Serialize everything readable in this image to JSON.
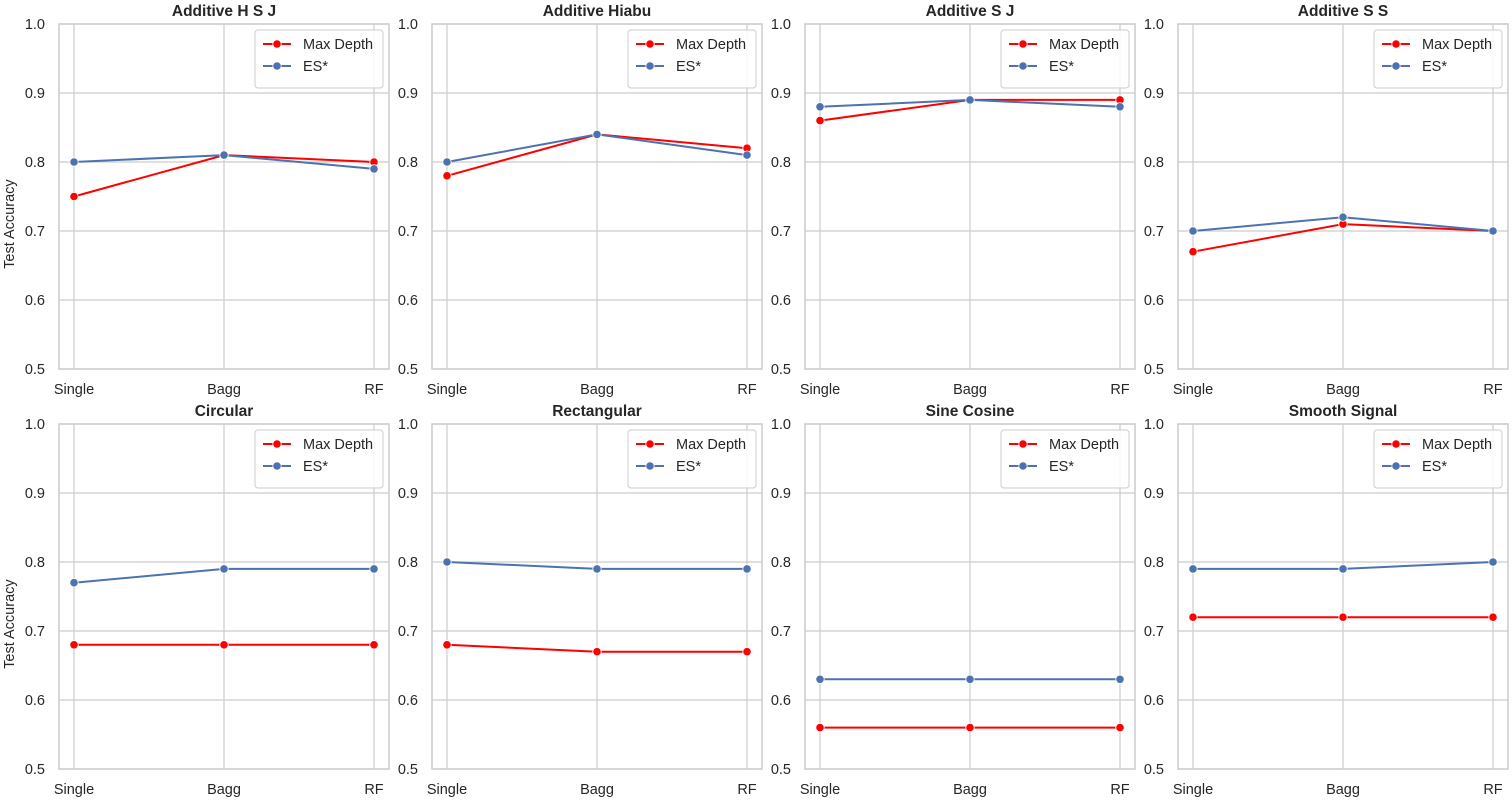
{
  "chart_data": [
    {
      "type": "line",
      "title": "Additive H S J",
      "xlabel": "",
      "ylabel": "Test Accuracy",
      "categories": [
        "Single",
        "Bagg",
        "RF"
      ],
      "ylim": [
        0.5,
        1.0
      ],
      "yticks": [
        "0.5",
        "0.6",
        "0.7",
        "0.8",
        "0.9",
        "1.0"
      ],
      "grid": true,
      "legend_position": "top-right",
      "series": [
        {
          "name": "Max Depth",
          "color": "#ff0000",
          "values": [
            0.75,
            0.81,
            0.8
          ]
        },
        {
          "name": "ES*",
          "color": "#4c72b0",
          "values": [
            0.8,
            0.81,
            0.79
          ]
        }
      ]
    },
    {
      "type": "line",
      "title": "Additive Hiabu",
      "xlabel": "",
      "ylabel": "",
      "categories": [
        "Single",
        "Bagg",
        "RF"
      ],
      "ylim": [
        0.5,
        1.0
      ],
      "yticks": [
        "0.5",
        "0.6",
        "0.7",
        "0.8",
        "0.9",
        "1.0"
      ],
      "grid": true,
      "legend_position": "top-right",
      "series": [
        {
          "name": "Max Depth",
          "color": "#ff0000",
          "values": [
            0.78,
            0.84,
            0.82
          ]
        },
        {
          "name": "ES*",
          "color": "#4c72b0",
          "values": [
            0.8,
            0.84,
            0.81
          ]
        }
      ]
    },
    {
      "type": "line",
      "title": "Additive S J",
      "xlabel": "",
      "ylabel": "",
      "categories": [
        "Single",
        "Bagg",
        "RF"
      ],
      "ylim": [
        0.5,
        1.0
      ],
      "yticks": [
        "0.5",
        "0.6",
        "0.7",
        "0.8",
        "0.9",
        "1.0"
      ],
      "grid": true,
      "legend_position": "top-right",
      "series": [
        {
          "name": "Max Depth",
          "color": "#ff0000",
          "values": [
            0.86,
            0.89,
            0.89
          ]
        },
        {
          "name": "ES*",
          "color": "#4c72b0",
          "values": [
            0.88,
            0.89,
            0.88
          ]
        }
      ]
    },
    {
      "type": "line",
      "title": "Additive S S",
      "xlabel": "",
      "ylabel": "",
      "categories": [
        "Single",
        "Bagg",
        "RF"
      ],
      "ylim": [
        0.5,
        1.0
      ],
      "yticks": [
        "0.5",
        "0.6",
        "0.7",
        "0.8",
        "0.9",
        "1.0"
      ],
      "grid": true,
      "legend_position": "top-right",
      "series": [
        {
          "name": "Max Depth",
          "color": "#ff0000",
          "values": [
            0.67,
            0.71,
            0.7
          ]
        },
        {
          "name": "ES*",
          "color": "#4c72b0",
          "values": [
            0.7,
            0.72,
            0.7
          ]
        }
      ]
    },
    {
      "type": "line",
      "title": "Circular",
      "xlabel": "",
      "ylabel": "Test Accuracy",
      "categories": [
        "Single",
        "Bagg",
        "RF"
      ],
      "ylim": [
        0.5,
        1.0
      ],
      "yticks": [
        "0.5",
        "0.6",
        "0.7",
        "0.8",
        "0.9",
        "1.0"
      ],
      "grid": true,
      "legend_position": "top-right",
      "series": [
        {
          "name": "Max Depth",
          "color": "#ff0000",
          "values": [
            0.68,
            0.68,
            0.68
          ]
        },
        {
          "name": "ES*",
          "color": "#4c72b0",
          "values": [
            0.77,
            0.79,
            0.79
          ]
        }
      ]
    },
    {
      "type": "line",
      "title": "Rectangular",
      "xlabel": "",
      "ylabel": "",
      "categories": [
        "Single",
        "Bagg",
        "RF"
      ],
      "ylim": [
        0.5,
        1.0
      ],
      "yticks": [
        "0.5",
        "0.6",
        "0.7",
        "0.8",
        "0.9",
        "1.0"
      ],
      "grid": true,
      "legend_position": "top-right",
      "series": [
        {
          "name": "Max Depth",
          "color": "#ff0000",
          "values": [
            0.68,
            0.67,
            0.67
          ]
        },
        {
          "name": "ES*",
          "color": "#4c72b0",
          "values": [
            0.8,
            0.79,
            0.79
          ]
        }
      ]
    },
    {
      "type": "line",
      "title": "Sine Cosine",
      "xlabel": "",
      "ylabel": "",
      "categories": [
        "Single",
        "Bagg",
        "RF"
      ],
      "ylim": [
        0.5,
        1.0
      ],
      "yticks": [
        "0.5",
        "0.6",
        "0.7",
        "0.8",
        "0.9",
        "1.0"
      ],
      "grid": true,
      "legend_position": "top-right",
      "series": [
        {
          "name": "Max Depth",
          "color": "#ff0000",
          "values": [
            0.56,
            0.56,
            0.56
          ]
        },
        {
          "name": "ES*",
          "color": "#4c72b0",
          "values": [
            0.63,
            0.63,
            0.63
          ]
        }
      ]
    },
    {
      "type": "line",
      "title": "Smooth Signal",
      "xlabel": "",
      "ylabel": "",
      "categories": [
        "Single",
        "Bagg",
        "RF"
      ],
      "ylim": [
        0.5,
        1.0
      ],
      "yticks": [
        "0.5",
        "0.6",
        "0.7",
        "0.8",
        "0.9",
        "1.0"
      ],
      "grid": true,
      "legend_position": "top-right",
      "series": [
        {
          "name": "Max Depth",
          "color": "#ff0000",
          "values": [
            0.72,
            0.72,
            0.72
          ]
        },
        {
          "name": "ES*",
          "color": "#4c72b0",
          "values": [
            0.79,
            0.79,
            0.8
          ]
        }
      ]
    }
  ],
  "colors": {
    "grid": "#cccccc",
    "axis_text": "#262626",
    "legend_border": "#cccccc"
  }
}
